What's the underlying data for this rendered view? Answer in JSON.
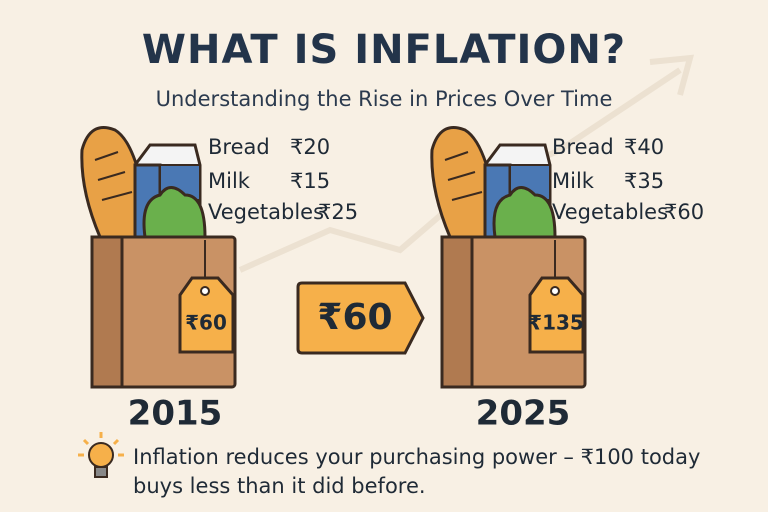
{
  "header": {
    "title": "WHAT IS INFLATION?",
    "subtitle": "Understanding the Rise in Prices Over Time"
  },
  "panels": [
    {
      "items": [
        {
          "name": "Bread",
          "price": "₹20"
        },
        {
          "name": "Milk",
          "price": "₹15"
        },
        {
          "name": "Vegetables",
          "price": "₹25"
        }
      ],
      "tag": "₹60",
      "year": "2015"
    },
    {
      "items": [
        {
          "name": "Bread",
          "price": "₹40"
        },
        {
          "name": "Milk",
          "price": "₹35"
        },
        {
          "name": "Vegetables",
          "price": "₹60"
        }
      ],
      "tag": "₹135",
      "year": "2025"
    }
  ],
  "arrow_label": "₹60",
  "note": {
    "lines": [
      "Inflation reduces your purchasing power – ₹100 today",
      "buys less than it did before."
    ]
  }
}
